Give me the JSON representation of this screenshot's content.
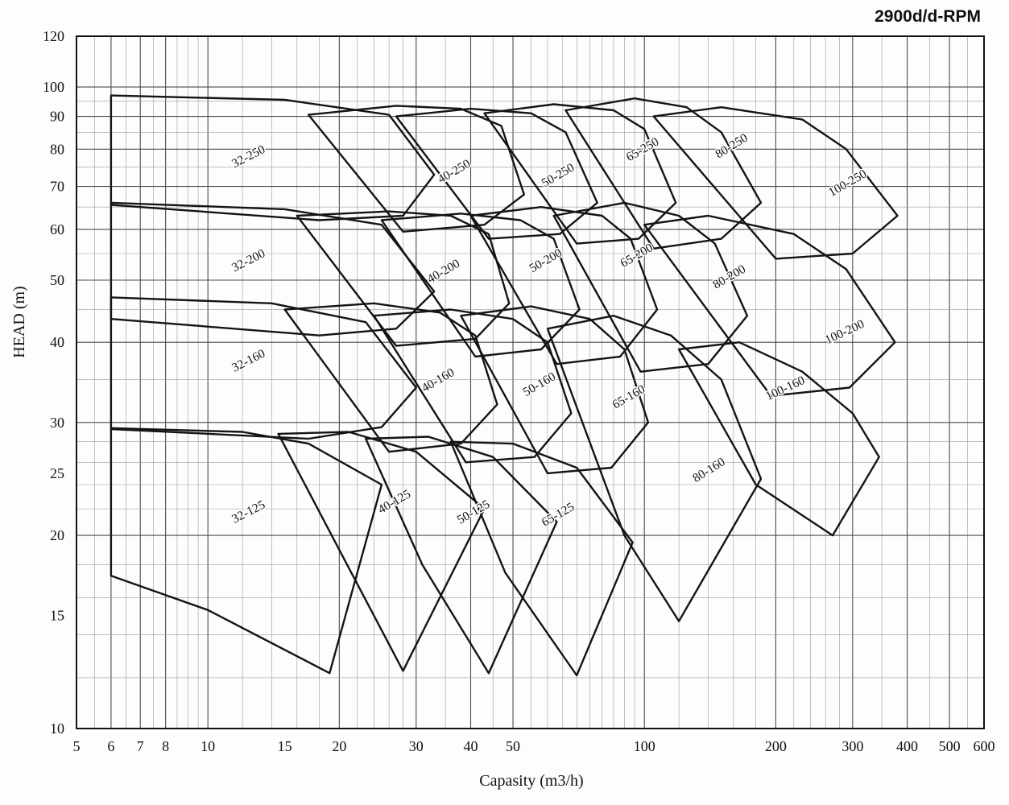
{
  "title": "2900d/d-RPM",
  "axes": {
    "x": {
      "label": "Capasity (m3/h)",
      "min": 5,
      "max": 600,
      "ticks": [
        5,
        6,
        7,
        8,
        10,
        15,
        20,
        30,
        40,
        50,
        100,
        200,
        300,
        400,
        500,
        600
      ]
    },
    "y": {
      "label": "HEAD (m)",
      "min": 10,
      "max": 120,
      "ticks": [
        10,
        15,
        20,
        25,
        30,
        40,
        50,
        60,
        70,
        80,
        90,
        100,
        120
      ]
    }
  },
  "chart_data": {
    "type": "line",
    "title": "2900d/d-RPM",
    "xlabel": "Capasity (m3/h)",
    "ylabel": "HEAD (m)",
    "xscale": "log",
    "yscale": "log",
    "grid": true,
    "xlim": [
      5,
      600
    ],
    "ylim": [
      10,
      120
    ],
    "xticks": [
      5,
      6,
      7,
      8,
      10,
      15,
      20,
      30,
      40,
      50,
      100,
      200,
      300,
      400,
      500,
      600
    ],
    "yticks": [
      10,
      15,
      20,
      25,
      30,
      40,
      50,
      60,
      70,
      80,
      90,
      100,
      120
    ],
    "description": "Pump selection envelope chart at 2900 RPM; each closed polygon is the operating envelope of one pump model (suction size - impeller diameter), capacity in m3/h vs head in m, both log scales.",
    "series": [
      {
        "name": "32-250",
        "points": [
          [
            6,
            65.5
          ],
          [
            6,
            97
          ],
          [
            15,
            95.5
          ],
          [
            26,
            90.5
          ],
          [
            33,
            73
          ],
          [
            28,
            63
          ],
          [
            18,
            62
          ]
        ],
        "label": {
          "x": 12.5,
          "y": 77,
          "angle": -27
        }
      },
      {
        "name": "40-250",
        "points": [
          [
            17,
            90.5
          ],
          [
            27,
            93.5
          ],
          [
            38,
            92.5
          ],
          [
            47,
            87
          ],
          [
            53,
            68
          ],
          [
            43,
            61
          ],
          [
            28,
            59.5
          ]
        ],
        "label": {
          "x": 37,
          "y": 73,
          "angle": -30
        }
      },
      {
        "name": "50-250",
        "points": [
          [
            27,
            90
          ],
          [
            40,
            92.5
          ],
          [
            55,
            91
          ],
          [
            66,
            85
          ],
          [
            78,
            66
          ],
          [
            64,
            59
          ],
          [
            44,
            58
          ]
        ],
        "label": {
          "x": 64,
          "y": 72,
          "angle": -30
        }
      },
      {
        "name": "65-250",
        "points": [
          [
            43,
            91
          ],
          [
            62,
            94
          ],
          [
            85,
            92
          ],
          [
            100,
            86
          ],
          [
            118,
            66
          ],
          [
            97,
            58
          ],
          [
            70,
            57
          ]
        ],
        "label": {
          "x": 100,
          "y": 79,
          "angle": -30
        }
      },
      {
        "name": "80-250",
        "points": [
          [
            66,
            92
          ],
          [
            95,
            96
          ],
          [
            125,
            93
          ],
          [
            150,
            85
          ],
          [
            185,
            66
          ],
          [
            150,
            58
          ],
          [
            105,
            56
          ]
        ],
        "label": {
          "x": 160,
          "y": 80,
          "angle": -32
        }
      },
      {
        "name": "100-250",
        "points": [
          [
            105,
            90
          ],
          [
            150,
            93
          ],
          [
            230,
            89
          ],
          [
            290,
            80
          ],
          [
            380,
            63
          ],
          [
            300,
            55
          ],
          [
            200,
            54
          ]
        ],
        "label": {
          "x": 295,
          "y": 70,
          "angle": -30
        }
      },
      {
        "name": "32-200",
        "points": [
          [
            6,
            43.5
          ],
          [
            6,
            66
          ],
          [
            15,
            64.5
          ],
          [
            25,
            61
          ],
          [
            33,
            48
          ],
          [
            27,
            42
          ],
          [
            18,
            41
          ]
        ],
        "label": {
          "x": 12.5,
          "y": 53,
          "angle": -27
        }
      },
      {
        "name": "40-200",
        "points": [
          [
            16,
            63
          ],
          [
            26,
            64
          ],
          [
            36,
            63
          ],
          [
            44,
            59
          ],
          [
            49,
            46
          ],
          [
            41,
            40.5
          ],
          [
            27,
            39.5
          ]
        ],
        "label": {
          "x": 35,
          "y": 51,
          "angle": -30
        }
      },
      {
        "name": "50-200",
        "points": [
          [
            25,
            62
          ],
          [
            38,
            63.5
          ],
          [
            52,
            62
          ],
          [
            62,
            58
          ],
          [
            71,
            45
          ],
          [
            58,
            39
          ],
          [
            41,
            38
          ]
        ],
        "label": {
          "x": 60,
          "y": 53,
          "angle": -30
        }
      },
      {
        "name": "65-200",
        "points": [
          [
            40,
            63
          ],
          [
            58,
            65
          ],
          [
            80,
            63
          ],
          [
            93,
            58
          ],
          [
            107,
            45
          ],
          [
            88,
            38
          ],
          [
            63,
            37
          ]
        ],
        "label": {
          "x": 97,
          "y": 54,
          "angle": -30
        }
      },
      {
        "name": "80-200",
        "points": [
          [
            62,
            63
          ],
          [
            90,
            66
          ],
          [
            120,
            63
          ],
          [
            145,
            57
          ],
          [
            172,
            44
          ],
          [
            140,
            37
          ],
          [
            98,
            36
          ]
        ],
        "label": {
          "x": 158,
          "y": 50,
          "angle": -30
        }
      },
      {
        "name": "100-200",
        "points": [
          [
            100,
            61
          ],
          [
            140,
            63
          ],
          [
            220,
            59
          ],
          [
            290,
            52
          ],
          [
            375,
            40
          ],
          [
            295,
            34
          ],
          [
            195,
            33
          ]
        ],
        "label": {
          "x": 290,
          "y": 41,
          "angle": -25
        }
      },
      {
        "name": "32-160",
        "points": [
          [
            6,
            29.3
          ],
          [
            6,
            47
          ],
          [
            14,
            46
          ],
          [
            23,
            43
          ],
          [
            30,
            34
          ],
          [
            25,
            29.5
          ],
          [
            17,
            28.3
          ]
        ],
        "label": {
          "x": 12.5,
          "y": 37,
          "angle": -27
        }
      },
      {
        "name": "40-160",
        "points": [
          [
            15,
            45
          ],
          [
            24,
            46
          ],
          [
            34,
            44.5
          ],
          [
            41,
            41
          ],
          [
            46,
            32
          ],
          [
            38,
            27.8
          ],
          [
            26,
            27
          ]
        ],
        "label": {
          "x": 34,
          "y": 34.5,
          "angle": -30
        }
      },
      {
        "name": "50-160",
        "points": [
          [
            24,
            44
          ],
          [
            36,
            45
          ],
          [
            50,
            43.5
          ],
          [
            60,
            40
          ],
          [
            68,
            31
          ],
          [
            56,
            26.5
          ],
          [
            39,
            26
          ]
        ],
        "label": {
          "x": 58,
          "y": 34,
          "angle": -30
        }
      },
      {
        "name": "65-160",
        "points": [
          [
            38,
            44
          ],
          [
            55,
            45.5
          ],
          [
            75,
            43.5
          ],
          [
            90,
            39
          ],
          [
            102,
            30
          ],
          [
            84,
            25.5
          ],
          [
            60,
            25
          ]
        ],
        "label": {
          "x": 93,
          "y": 32.5,
          "angle": -30
        }
      },
      {
        "name": "80-160",
        "points": [
          [
            60,
            42
          ],
          [
            85,
            44
          ],
          [
            115,
            41
          ],
          [
            150,
            35
          ],
          [
            185,
            24.5
          ],
          [
            120,
            14.7
          ],
          [
            90,
            20
          ]
        ],
        "label": {
          "x": 142,
          "y": 25,
          "angle": -32
        }
      },
      {
        "name": "100-160",
        "points": [
          [
            120,
            39
          ],
          [
            165,
            40
          ],
          [
            230,
            36
          ],
          [
            300,
            31
          ],
          [
            345,
            26.5
          ],
          [
            270,
            20
          ],
          [
            180,
            24
          ]
        ],
        "label": {
          "x": 212,
          "y": 33.5,
          "angle": -25
        }
      },
      {
        "name": "32-125",
        "points": [
          [
            6,
            17.3
          ],
          [
            6,
            29.4
          ],
          [
            12,
            29
          ],
          [
            17,
            27.8
          ],
          [
            25,
            24
          ],
          [
            19,
            12.2
          ],
          [
            10,
            15.3
          ]
        ],
        "label": {
          "x": 12.5,
          "y": 21.5,
          "angle": -27
        }
      },
      {
        "name": "40-125",
        "points": [
          [
            14.5,
            28.8
          ],
          [
            21,
            29
          ],
          [
            30,
            27
          ],
          [
            43,
            22
          ],
          [
            28,
            12.3
          ],
          [
            20,
            19
          ]
        ],
        "label": {
          "x": 27,
          "y": 22.3,
          "angle": -30
        }
      },
      {
        "name": "50-125",
        "points": [
          [
            23,
            28.3
          ],
          [
            32,
            28.5
          ],
          [
            45,
            26.5
          ],
          [
            63,
            21
          ],
          [
            44,
            12.2
          ],
          [
            31,
            18
          ]
        ],
        "label": {
          "x": 41,
          "y": 21.5,
          "angle": -30
        }
      },
      {
        "name": "65-125",
        "points": [
          [
            36,
            28
          ],
          [
            50,
            27.8
          ],
          [
            70,
            25.5
          ],
          [
            94,
            19.5
          ],
          [
            70,
            12.1
          ],
          [
            48,
            17.5
          ]
        ],
        "label": {
          "x": 64,
          "y": 21.3,
          "angle": -30
        }
      }
    ]
  },
  "layout_hints": {
    "legend": "none",
    "grid": "log-log minor and major gridlines",
    "title_position": "top-right"
  }
}
